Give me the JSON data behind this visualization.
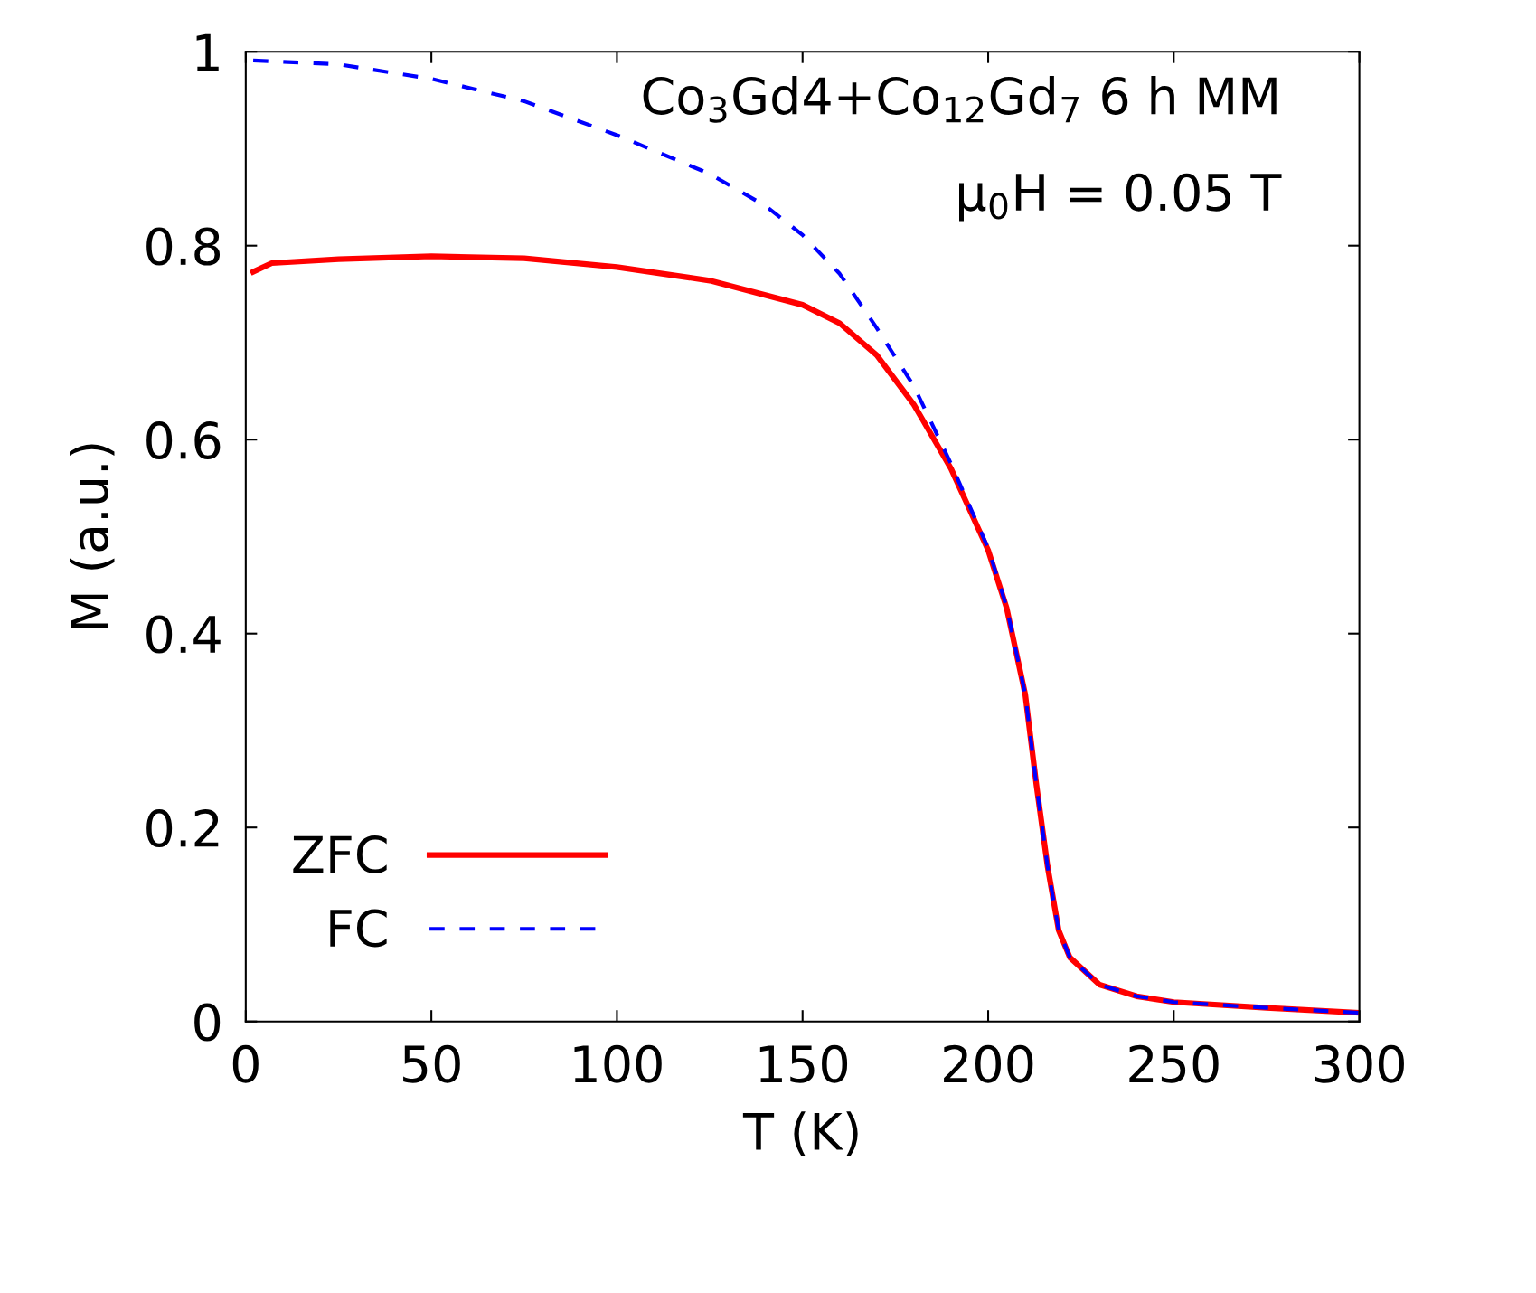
{
  "chart_data": {
    "type": "line",
    "xlabel": "T (K)",
    "ylabel": "M (a.u.)",
    "xlim": [
      0,
      300
    ],
    "ylim": [
      0,
      1
    ],
    "xticks": [
      0,
      50,
      100,
      150,
      200,
      250,
      300
    ],
    "yticks": [
      0,
      0.2,
      0.4,
      0.6,
      0.8,
      1
    ],
    "grid": false,
    "legend": "bottom left",
    "annotations": [
      "Co$_{3}$Gd4+Co$_{12}$Gd$_{7}$ 6 h MM",
      "μ$_{0}$H = 0.05 T"
    ],
    "series": [
      {
        "name": "ZFC",
        "color": "#ff0000",
        "line_style": "solid",
        "x": [
          2,
          7,
          25,
          50,
          75,
          100,
          125,
          150,
          160,
          170,
          180,
          190,
          200,
          205,
          210,
          213,
          216,
          219,
          222,
          230,
          240,
          250,
          275,
          300
        ],
        "values": [
          0.773,
          0.782,
          0.786,
          0.789,
          0.787,
          0.778,
          0.764,
          0.739,
          0.72,
          0.687,
          0.636,
          0.57,
          0.486,
          0.426,
          0.337,
          0.244,
          0.16,
          0.094,
          0.066,
          0.038,
          0.026,
          0.02,
          0.014,
          0.009
        ]
      },
      {
        "name": "FC",
        "color": "#0000ff",
        "line_style": "dashed",
        "x": [
          2,
          25,
          50,
          75,
          100,
          125,
          140,
          150,
          160,
          170,
          180,
          190,
          200,
          205,
          210,
          213,
          216,
          219,
          222,
          230,
          240,
          250,
          275,
          300
        ],
        "values": [
          0.991,
          0.987,
          0.972,
          0.949,
          0.914,
          0.874,
          0.841,
          0.811,
          0.771,
          0.715,
          0.655,
          0.575,
          0.488,
          0.427,
          0.337,
          0.244,
          0.16,
          0.094,
          0.066,
          0.038,
          0.026,
          0.02,
          0.014,
          0.009
        ]
      }
    ]
  }
}
